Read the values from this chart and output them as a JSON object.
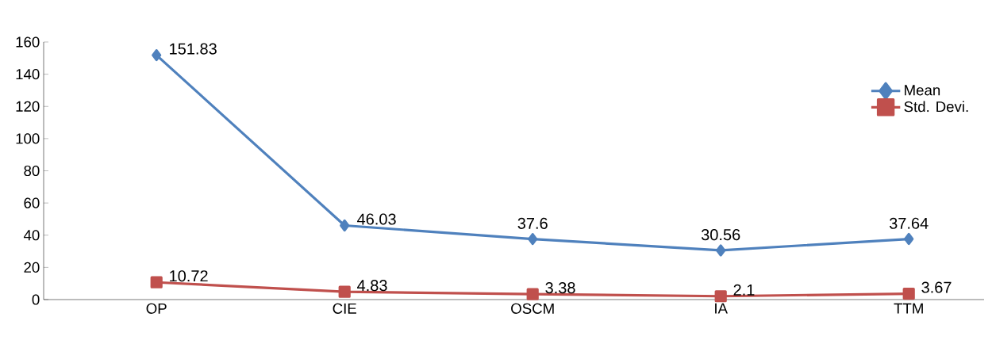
{
  "chart_data": {
    "type": "line",
    "categories": [
      "OP",
      "CIE",
      "OSCM",
      "IA",
      "TTM"
    ],
    "series": [
      {
        "name": "Mean",
        "color": "#4f81bd",
        "marker": "diamond",
        "values": [
          151.83,
          46.03,
          37.6,
          30.56,
          37.64
        ]
      },
      {
        "name": "Std. Devi.",
        "color": "#c0504d",
        "marker": "square",
        "values": [
          10.72,
          4.83,
          3.38,
          2.1,
          3.67
        ]
      }
    ],
    "ylim": [
      0,
      160
    ],
    "yticks": [
      0,
      20,
      40,
      60,
      80,
      100,
      120,
      140,
      160
    ],
    "grid": false,
    "legend": "right",
    "data_labels": true,
    "line_style": "solid"
  }
}
